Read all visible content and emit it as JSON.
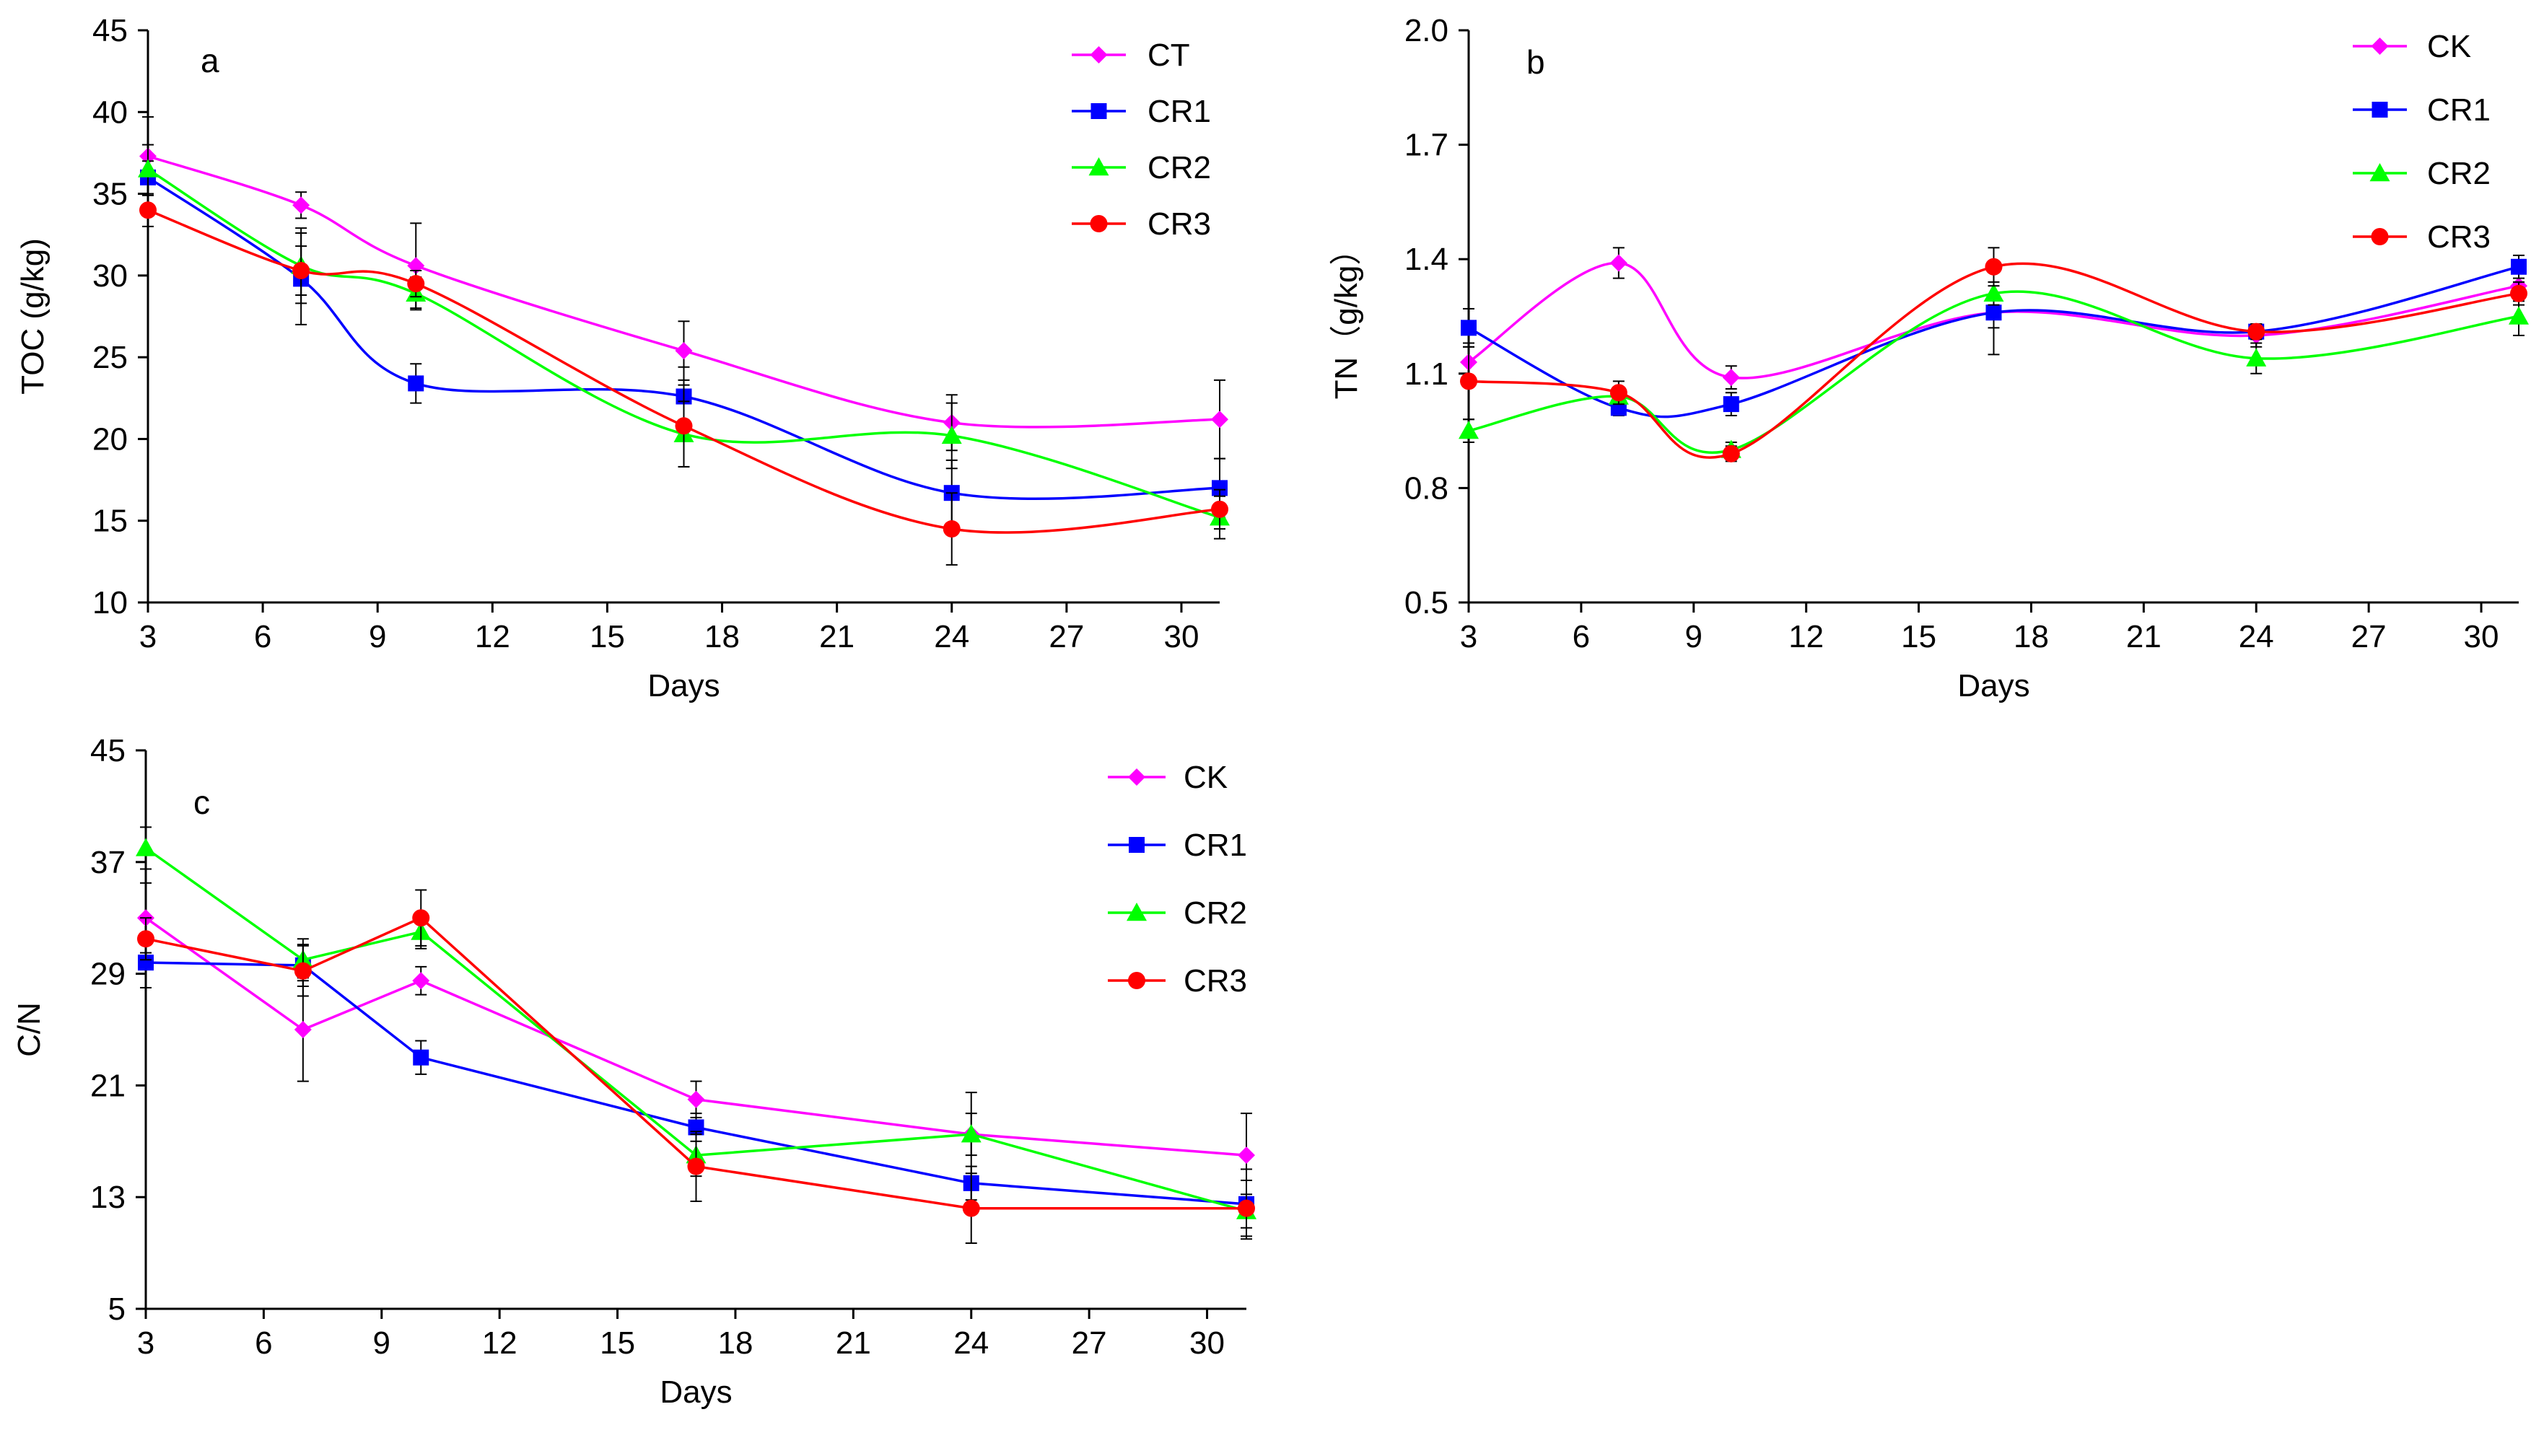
{
  "chart_data": [
    {
      "type": "line",
      "panel": "a",
      "xlabel": "Days",
      "ylabel": "TOC (g/kg)",
      "xlim": [
        3,
        31
      ],
      "ylim": [
        10,
        45
      ],
      "xticks": [
        3,
        6,
        9,
        12,
        15,
        18,
        21,
        24,
        27,
        30
      ],
      "yticks": [
        10,
        15,
        20,
        25,
        30,
        35,
        40,
        45
      ],
      "x": [
        3,
        7,
        10,
        17,
        24,
        31
      ],
      "legend_position": "top-right",
      "series": [
        {
          "name": "CT",
          "color": "#ff00ff",
          "marker": "diamond",
          "values": [
            37.3,
            34.3,
            30.6,
            25.4,
            21.0,
            21.2
          ],
          "err": [
            2.4,
            0.8,
            2.6,
            1.8,
            1.7,
            2.4
          ]
        },
        {
          "name": "CR1",
          "color": "#0000ff",
          "marker": "square",
          "values": [
            36.0,
            29.8,
            23.4,
            22.6,
            16.7,
            17.0
          ],
          "err": [
            1.0,
            2.8,
            1.2,
            1.8,
            2.0,
            1.8
          ]
        },
        {
          "name": "CR2",
          "color": "#00ff00",
          "marker": "triangle",
          "values": [
            36.5,
            30.6,
            28.9,
            20.3,
            20.2,
            15.2
          ],
          "err": [
            1.5,
            2.3,
            1.0,
            2.0,
            2.0,
            1.3
          ]
        },
        {
          "name": "CR3",
          "color": "#ff0000",
          "marker": "circle",
          "values": [
            34.0,
            30.3,
            29.5,
            20.8,
            14.5,
            15.7
          ],
          "err": [
            1.0,
            1.5,
            0.8,
            2.5,
            2.2,
            1.2
          ]
        }
      ]
    },
    {
      "type": "line",
      "panel": "b",
      "xlabel": "Days",
      "ylabel": "TN（g/kg）",
      "xlim": [
        3,
        31
      ],
      "ylim": [
        0.5,
        2.0
      ],
      "xticks": [
        3,
        6,
        9,
        12,
        15,
        18,
        21,
        24,
        27,
        30
      ],
      "yticks": [
        "0.5",
        "0.8",
        "1.1",
        "1.4",
        "1.7",
        "2.0"
      ],
      "x": [
        3,
        7,
        10,
        17,
        24,
        31
      ],
      "legend_position": "top-right",
      "series": [
        {
          "name": "CK",
          "color": "#ff00ff",
          "marker": "diamond",
          "values": [
            1.13,
            1.39,
            1.09,
            1.26,
            1.2,
            1.33
          ],
          "err": [
            0.04,
            0.04,
            0.03,
            0.04,
            0.03,
            0.04
          ]
        },
        {
          "name": "CR1",
          "color": "#0000ff",
          "marker": "square",
          "values": [
            1.22,
            1.01,
            1.02,
            1.26,
            1.21,
            1.38
          ],
          "err": [
            0.05,
            0.02,
            0.03,
            0.11,
            0.02,
            0.03
          ]
        },
        {
          "name": "CR2",
          "color": "#00ff00",
          "marker": "triangle",
          "values": [
            0.95,
            1.04,
            0.9,
            1.31,
            1.14,
            1.25
          ],
          "err": [
            0.03,
            0.02,
            0.02,
            0.03,
            0.04,
            0.05
          ]
        },
        {
          "name": "CR3",
          "color": "#ff0000",
          "marker": "circle",
          "values": [
            1.08,
            1.05,
            0.89,
            1.38,
            1.21,
            1.31
          ],
          "err": [
            0.1,
            0.03,
            0.02,
            0.05,
            0.02,
            0.03
          ]
        }
      ]
    },
    {
      "type": "line",
      "panel": "c",
      "xlabel": "Days",
      "ylabel": "C/N",
      "xlim": [
        3,
        31
      ],
      "ylim": [
        5,
        45
      ],
      "xticks": [
        3,
        6,
        9,
        12,
        15,
        18,
        21,
        24,
        27,
        30
      ],
      "yticks": [
        5,
        13,
        21,
        29,
        37,
        45
      ],
      "x": [
        3,
        7,
        10,
        17,
        24,
        31
      ],
      "legend_position": "top-right",
      "series": [
        {
          "name": "CK",
          "color": "#ff00ff",
          "marker": "diamond",
          "values": [
            33.0,
            25.0,
            28.5,
            20.0,
            17.5,
            16.0
          ],
          "err": [
            2.5,
            3.7,
            1.0,
            1.3,
            3.0,
            3.0
          ]
        },
        {
          "name": "CR1",
          "color": "#0000ff",
          "marker": "square",
          "values": [
            29.8,
            29.6,
            23.0,
            18.0,
            14.0,
            12.5
          ],
          "err": [
            1.8,
            1.5,
            1.2,
            1.0,
            1.2,
            2.5
          ]
        },
        {
          "name": "CR2",
          "color": "#00ff00",
          "marker": "triangle",
          "values": [
            38.0,
            30.0,
            32.0,
            16.0,
            17.5,
            12.0
          ],
          "err": [
            1.5,
            1.5,
            1.2,
            1.5,
            1.5,
            1.2
          ]
        },
        {
          "name": "CR3",
          "color": "#ff0000",
          "marker": "circle",
          "values": [
            31.5,
            29.2,
            33.0,
            15.2,
            12.2,
            12.2
          ],
          "err": [
            1.5,
            1.8,
            2.0,
            2.5,
            2.5,
            2.0
          ]
        }
      ]
    }
  ]
}
